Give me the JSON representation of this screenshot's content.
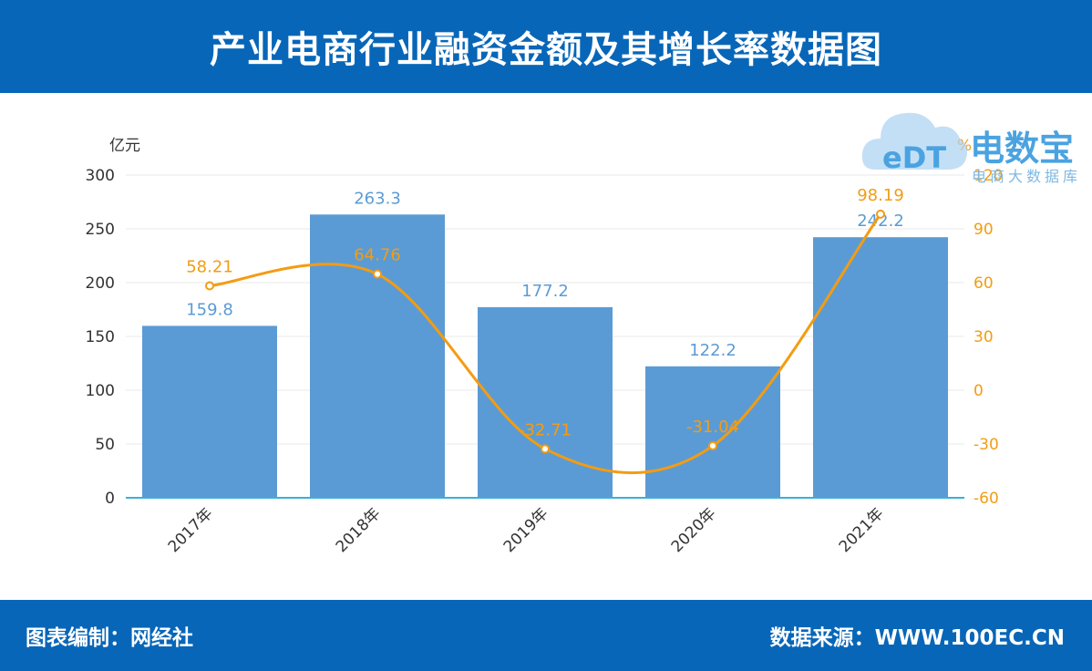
{
  "header": {
    "title": "产业电商行业融资金额及其增长率数据图"
  },
  "footer": {
    "left": "图表编制：网经社",
    "right": "数据来源：WWW.100EC.CN"
  },
  "logo": {
    "name": "电数宝",
    "sub": "电商大数据库",
    "badge": "eDT"
  },
  "chart_data": {
    "type": "bar",
    "categories": [
      "2017年",
      "2018年",
      "2019年",
      "2020年",
      "2021年"
    ],
    "series": [
      {
        "type": "bar",
        "axis": "left",
        "values": [
          159.8,
          263.3,
          177.2,
          122.2,
          242.2
        ],
        "color": "#5b9bd5",
        "label_color": "#5b9bd5"
      },
      {
        "type": "line",
        "axis": "right",
        "values": [
          58.21,
          64.76,
          -32.71,
          -31.04,
          98.19
        ],
        "color": "#f39c12",
        "label_color": "#f39c12"
      }
    ],
    "left_axis": {
      "unit": "亿元",
      "ylim": [
        0,
        300
      ],
      "ticks": [
        0,
        50,
        100,
        150,
        200,
        250,
        300
      ]
    },
    "right_axis": {
      "unit": "%",
      "ylim": [
        -60,
        120
      ],
      "ticks": [
        -60,
        -30,
        0,
        30,
        60,
        90,
        120
      ]
    },
    "grid": true
  }
}
